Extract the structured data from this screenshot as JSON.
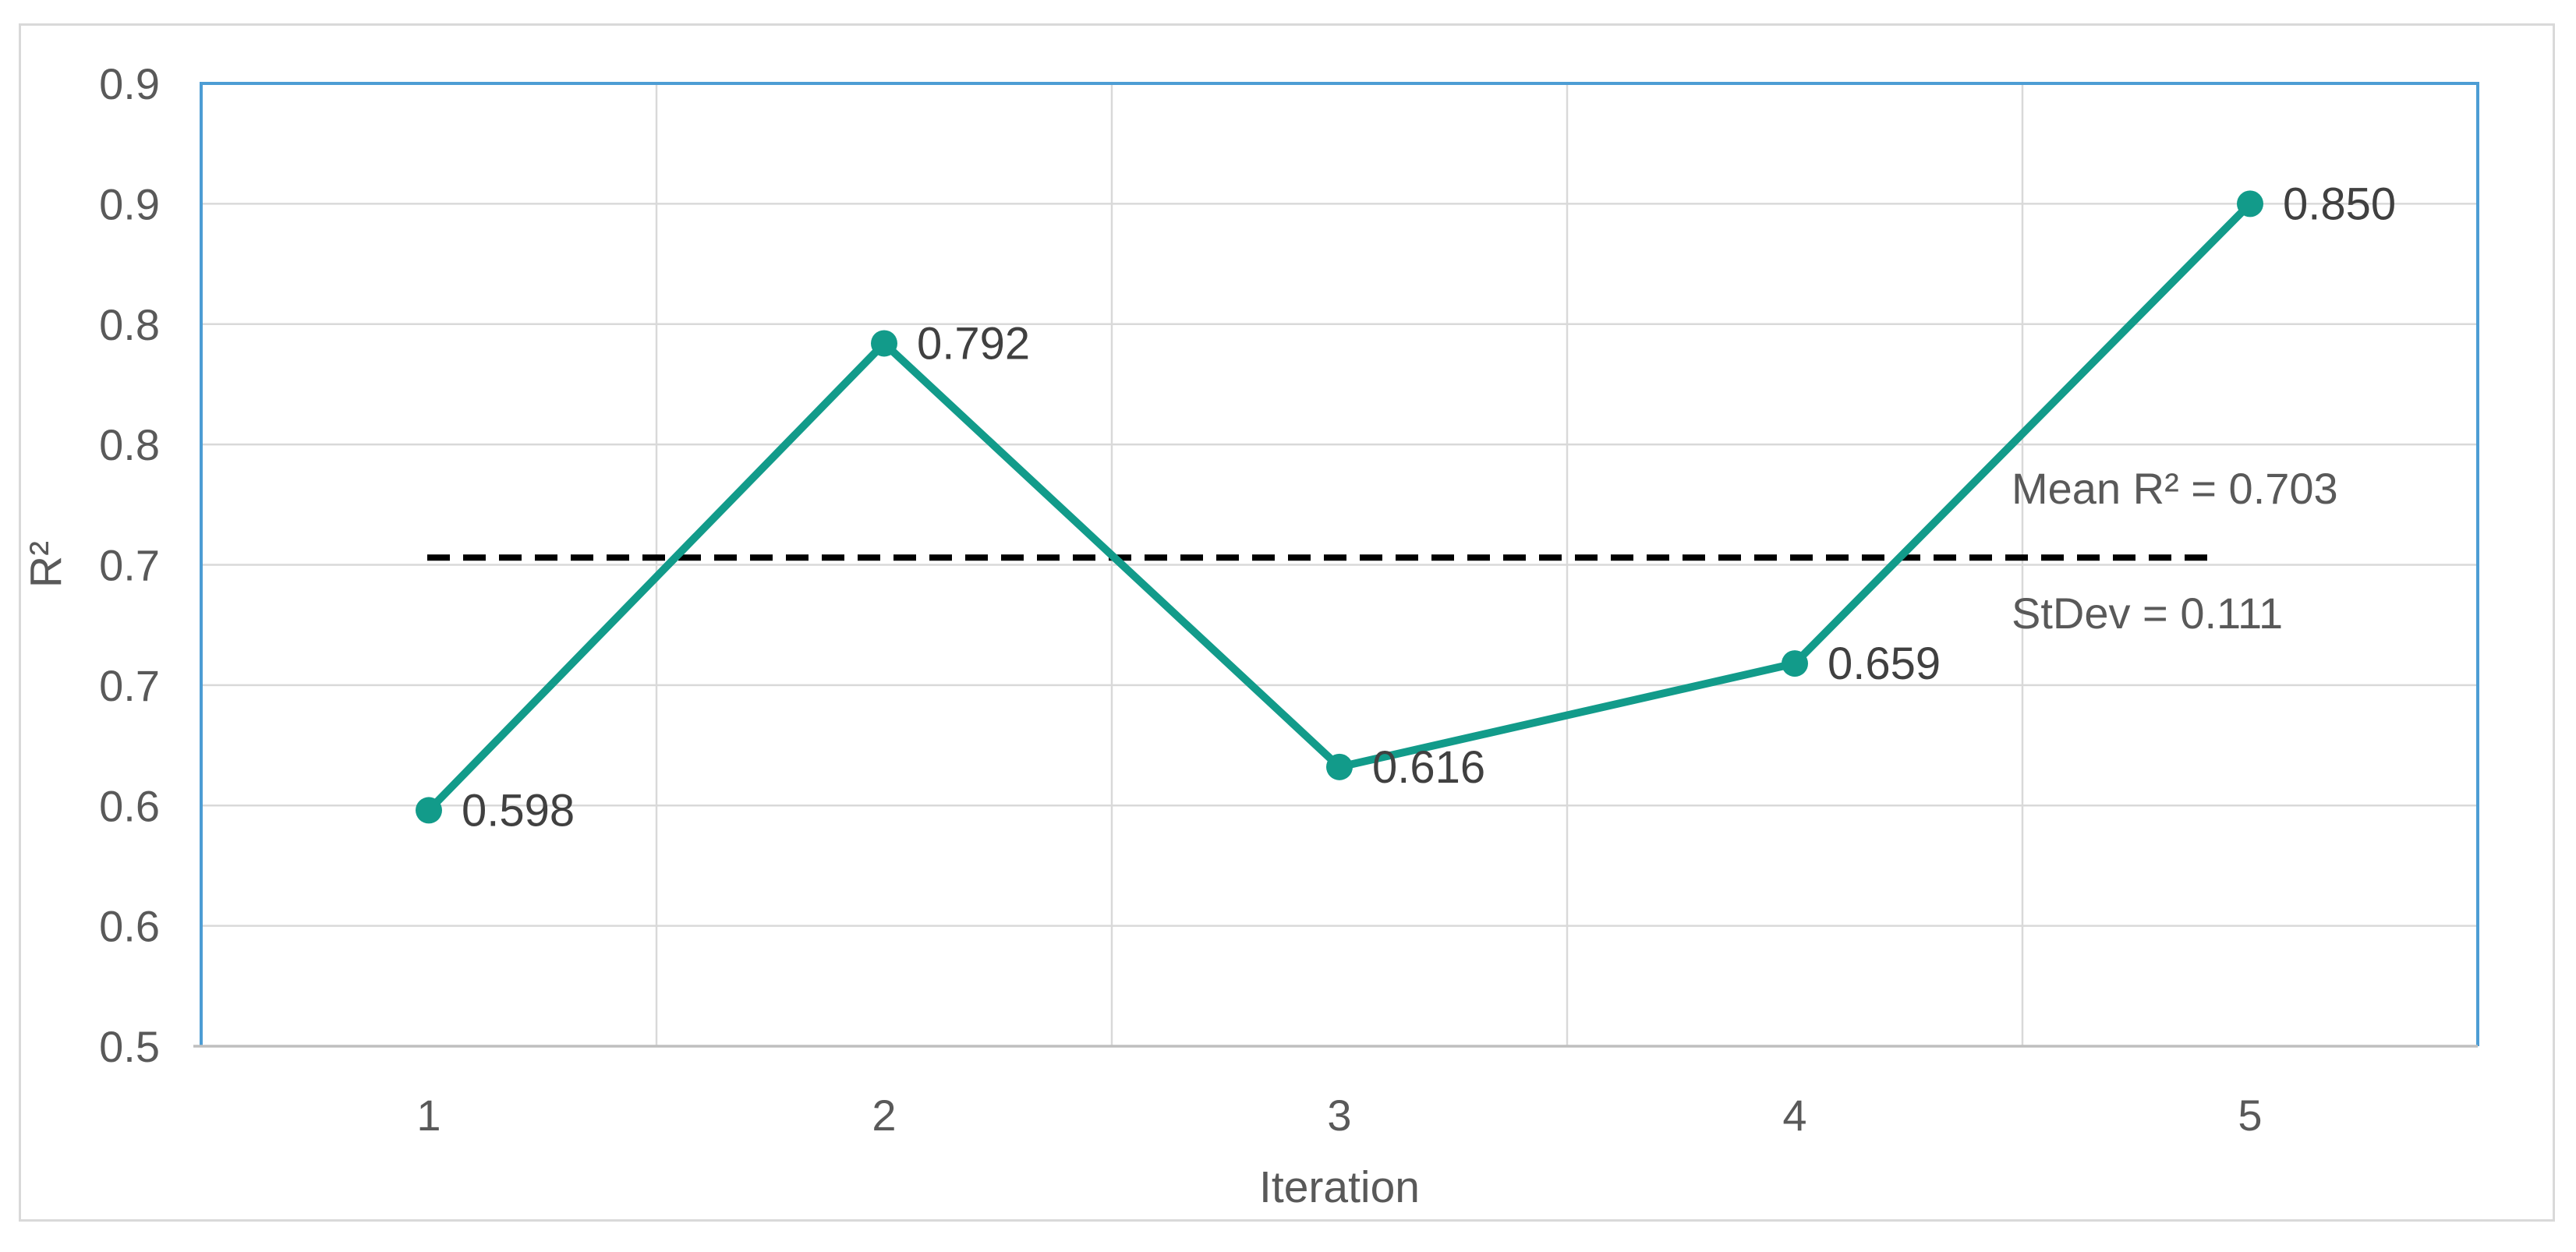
{
  "chart_data": {
    "type": "line",
    "title": "",
    "xlabel": "Iteration",
    "ylabel": "R²",
    "x": [
      1,
      2,
      3,
      4,
      5
    ],
    "series": [
      {
        "name": "R²",
        "values": [
          0.598,
          0.792,
          0.616,
          0.659,
          0.85
        ]
      }
    ],
    "point_labels": [
      "0.598",
      "0.792",
      "0.616",
      "0.659",
      "0.850"
    ],
    "x_tick_labels": [
      "1",
      "2",
      "3",
      "4",
      "5"
    ],
    "y_tick_labels": [
      "0.9",
      "0.9",
      "0.8",
      "0.8",
      "0.7",
      "0.7",
      "0.6",
      "0.6",
      "0.5"
    ],
    "ylim": [
      0.5,
      0.9
    ],
    "y_tick_step": 0.05,
    "grid": true,
    "legend": "none",
    "mean": 0.703,
    "stdev": 0.111,
    "annotations": [
      "Mean R² = 0.703",
      "StDev = 0.111"
    ],
    "mean_line_style": "dashed",
    "colors": {
      "series_line": "#129B8A",
      "marker": "#129B8A",
      "mean_line": "#000000",
      "plot_border": "#4D9DD4",
      "gridline": "#D9D9D9",
      "axis_line": "#BFBFBF",
      "outer_border": "#D9D9D9",
      "tick_text": "#595959",
      "label_text": "#404040"
    }
  }
}
